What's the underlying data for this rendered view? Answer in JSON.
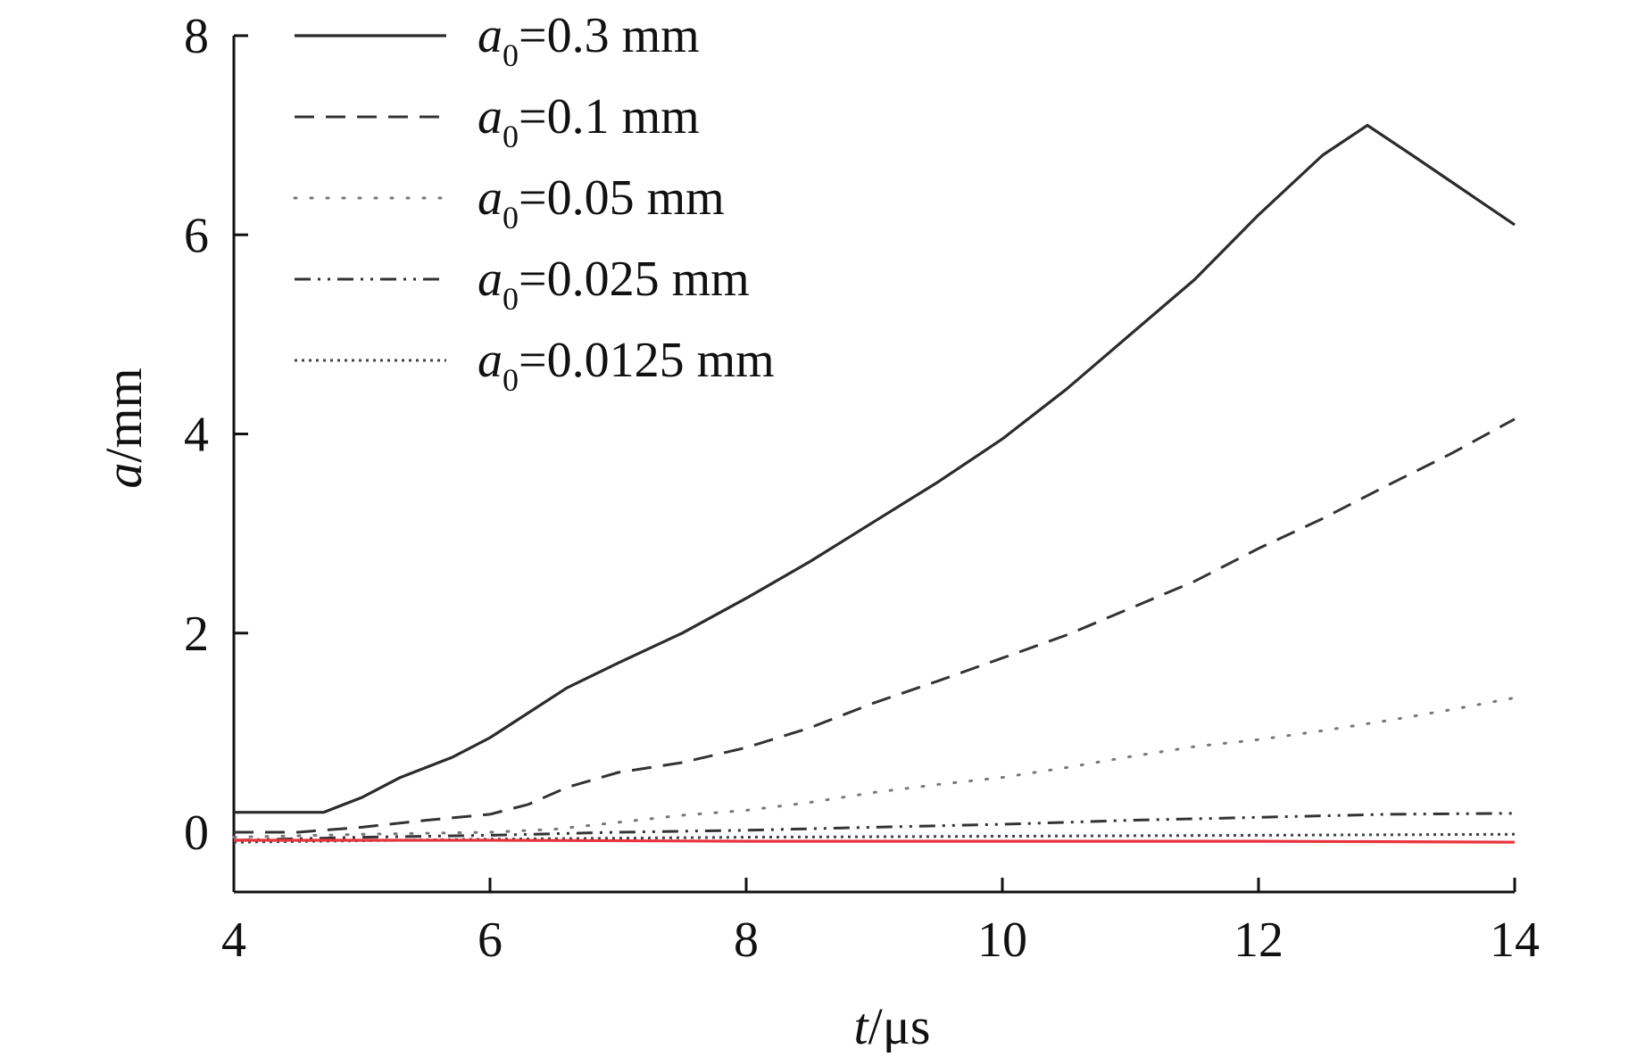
{
  "chart_data": {
    "type": "line",
    "title": "",
    "xlabel": {
      "var": "t",
      "unit": "/μs"
    },
    "ylabel": {
      "var": "a",
      "unit": "/mm"
    },
    "xlim": [
      4,
      14
    ],
    "ylim": [
      -0.6,
      8
    ],
    "xticks": [
      4,
      6,
      8,
      10,
      12,
      14
    ],
    "yticks": [
      0,
      2,
      4,
      6,
      8
    ],
    "grid": false,
    "legend_position": "top-left",
    "series": [
      {
        "name": "a0=0.3 mm",
        "legend": {
          "var": "a",
          "sub": "0",
          "rest": "=0.3 mm"
        },
        "style": "solid",
        "color": "#2b2b2b",
        "x": [
          4.0,
          4.3,
          4.7,
          5.0,
          5.3,
          5.7,
          6.0,
          6.3,
          6.6,
          7.0,
          7.5,
          8.0,
          8.5,
          9.0,
          9.5,
          10.0,
          10.5,
          11.0,
          11.5,
          12.0,
          12.5,
          12.85,
          13.2,
          13.6,
          14.0
        ],
        "y": [
          0.2,
          0.2,
          0.2,
          0.35,
          0.55,
          0.75,
          0.95,
          1.2,
          1.45,
          1.7,
          2.0,
          2.35,
          2.72,
          3.12,
          3.52,
          3.95,
          4.45,
          5.0,
          5.55,
          6.2,
          6.8,
          7.1,
          6.8,
          6.45,
          6.1
        ]
      },
      {
        "name": "a0=0.1 mm",
        "legend": {
          "var": "a",
          "sub": "0",
          "rest": "=0.1 mm"
        },
        "style": "dashed",
        "color": "#333333",
        "x": [
          4.0,
          4.5,
          5.0,
          5.5,
          6.0,
          6.3,
          6.6,
          7.0,
          7.5,
          8.0,
          8.5,
          9.0,
          9.5,
          10.0,
          10.5,
          11.0,
          11.5,
          12.0,
          12.5,
          13.0,
          13.5,
          14.0
        ],
        "y": [
          0.0,
          0.0,
          0.05,
          0.12,
          0.18,
          0.28,
          0.45,
          0.6,
          0.7,
          0.85,
          1.05,
          1.3,
          1.52,
          1.75,
          1.98,
          2.25,
          2.52,
          2.85,
          3.15,
          3.48,
          3.8,
          4.15
        ]
      },
      {
        "name": "a0=0.05 mm",
        "legend": {
          "var": "a",
          "sub": "0",
          "rest": "=0.05 mm"
        },
        "style": "dotted-sparse",
        "color": "#777777",
        "x": [
          4.0,
          5.0,
          6.0,
          6.5,
          7.0,
          7.5,
          8.0,
          8.5,
          9.0,
          9.5,
          10.0,
          10.5,
          11.0,
          11.5,
          12.0,
          12.5,
          13.0,
          13.5,
          14.0
        ],
        "y": [
          -0.05,
          -0.02,
          0.0,
          0.03,
          0.1,
          0.17,
          0.22,
          0.3,
          0.4,
          0.48,
          0.55,
          0.65,
          0.76,
          0.86,
          0.93,
          1.02,
          1.12,
          1.23,
          1.35
        ]
      },
      {
        "name": "a0=0.025 mm",
        "legend": {
          "var": "a",
          "sub": "0",
          "rest": "=0.025 mm"
        },
        "style": "dash-dot-dot",
        "color": "#333333",
        "x": [
          4.0,
          5.0,
          6.0,
          7.0,
          8.0,
          9.0,
          10.0,
          11.0,
          12.0,
          13.0,
          14.0
        ],
        "y": [
          -0.08,
          -0.05,
          -0.03,
          0.0,
          0.02,
          0.05,
          0.08,
          0.12,
          0.15,
          0.18,
          0.19
        ]
      },
      {
        "name": "a0=0.0125 mm",
        "legend": {
          "var": "a",
          "sub": "0",
          "rest": "=0.0125 mm"
        },
        "style": "dotted-dense",
        "color": "#444444",
        "x": [
          4.0,
          6.0,
          8.0,
          10.0,
          12.0,
          14.0
        ],
        "y": [
          -0.1,
          -0.07,
          -0.05,
          -0.04,
          -0.03,
          -0.02
        ]
      },
      {
        "name": "",
        "style": "solid",
        "color": "#e8323c",
        "in_legend": false,
        "x": [
          4.0,
          6.0,
          8.0,
          10.0,
          12.0,
          14.0
        ],
        "y": [
          -0.08,
          -0.08,
          -0.09,
          -0.09,
          -0.09,
          -0.1
        ]
      }
    ]
  }
}
